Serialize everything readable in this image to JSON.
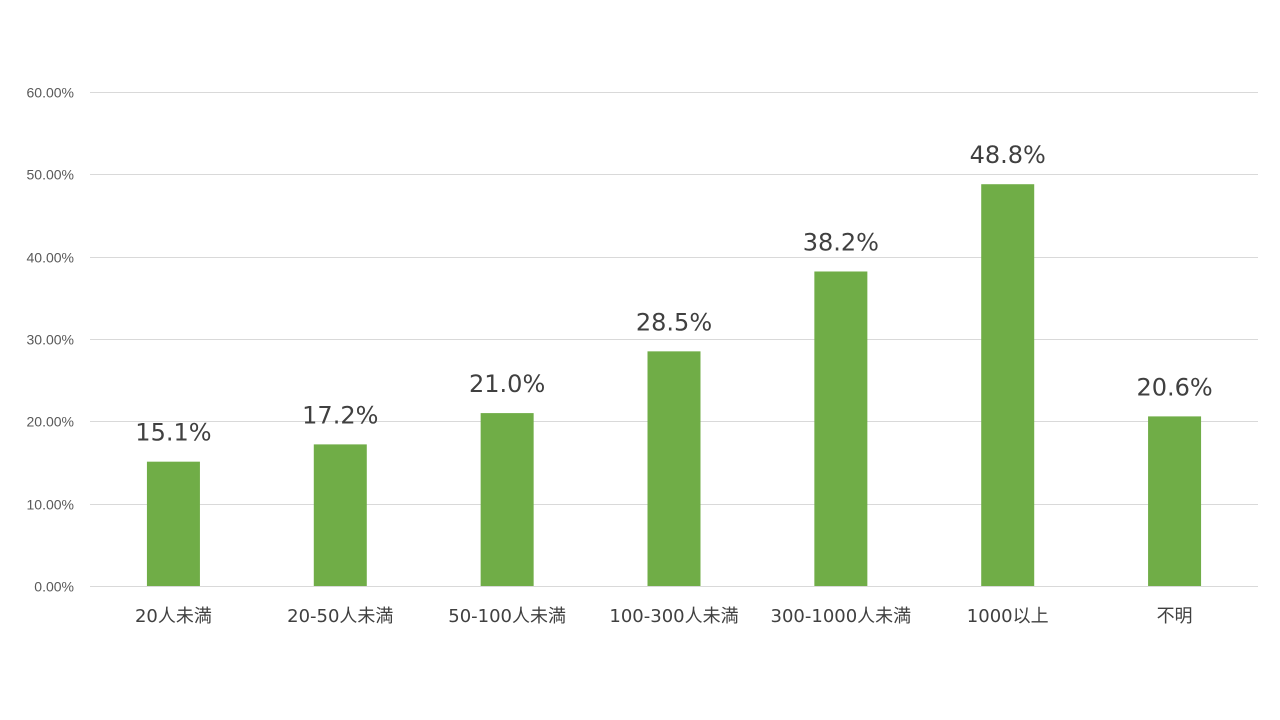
{
  "chart_data": {
    "type": "bar",
    "categories": [
      "20人未満",
      "20-50人未満",
      "50-100人未満",
      "100-300人未満",
      "300-1000人未満",
      "1000以上",
      "不明"
    ],
    "values": [
      15.1,
      17.2,
      21.0,
      28.5,
      38.2,
      48.8,
      20.6
    ],
    "data_labels": [
      "15.1%",
      "17.2%",
      "21.0%",
      "28.5%",
      "38.2%",
      "48.8%",
      "20.6%"
    ],
    "title": "",
    "xlabel": "",
    "ylabel": "",
    "ylim": [
      0,
      60
    ],
    "y_ticks": [
      0,
      10,
      20,
      30,
      40,
      50,
      60
    ],
    "y_tick_labels": [
      "0.00%",
      "10.00%",
      "20.00%",
      "30.00%",
      "40.00%",
      "50.00%",
      "60.00%"
    ],
    "grid": true,
    "legend": "none",
    "bar_color": "#70ad47",
    "gridline_color": "#d9d9d9"
  }
}
